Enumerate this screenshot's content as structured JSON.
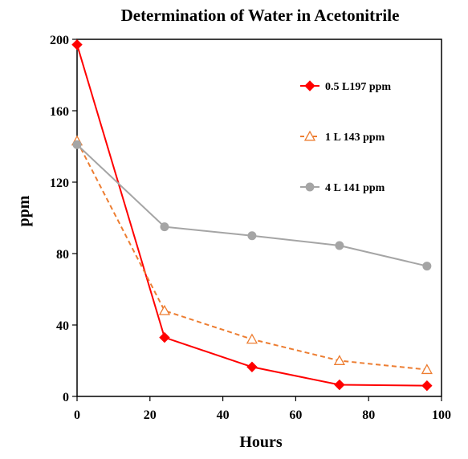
{
  "chart_data": {
    "type": "line",
    "title": "Determination of Water in Acetonitrile",
    "xlabel": "Hours",
    "ylabel": "ppm",
    "xlim": [
      0,
      100
    ],
    "ylim": [
      0,
      200
    ],
    "xticks": [
      0,
      20,
      40,
      60,
      80,
      100
    ],
    "yticks": [
      0,
      40,
      80,
      120,
      160,
      200
    ],
    "xtick_labels": [
      "0",
      "20",
      "40",
      "60",
      "80",
      "100"
    ],
    "ytick_labels": [
      "0",
      "40",
      "80",
      "120",
      "160",
      "200"
    ],
    "grid": false,
    "legend_position": "top-right",
    "series": [
      {
        "name": "0.5 L197 ppm",
        "color": "#ff0000",
        "line_style": "solid",
        "marker": "filled-diamond",
        "x": [
          0,
          24,
          48,
          72,
          96
        ],
        "y": [
          197,
          33,
          16.5,
          6.5,
          6
        ]
      },
      {
        "name": "1 L 143 ppm",
        "color": "#ed7d31",
        "line_style": "dashed",
        "marker": "open-triangle",
        "x": [
          0,
          24,
          48,
          72,
          96
        ],
        "y": [
          143,
          48,
          32,
          20,
          15
        ]
      },
      {
        "name": "4 L 141 ppm",
        "color": "#a5a5a5",
        "line_style": "solid",
        "marker": "filled-circle",
        "x": [
          0,
          24,
          48,
          72,
          96
        ],
        "y": [
          141,
          95,
          90,
          84.5,
          73
        ]
      }
    ]
  }
}
